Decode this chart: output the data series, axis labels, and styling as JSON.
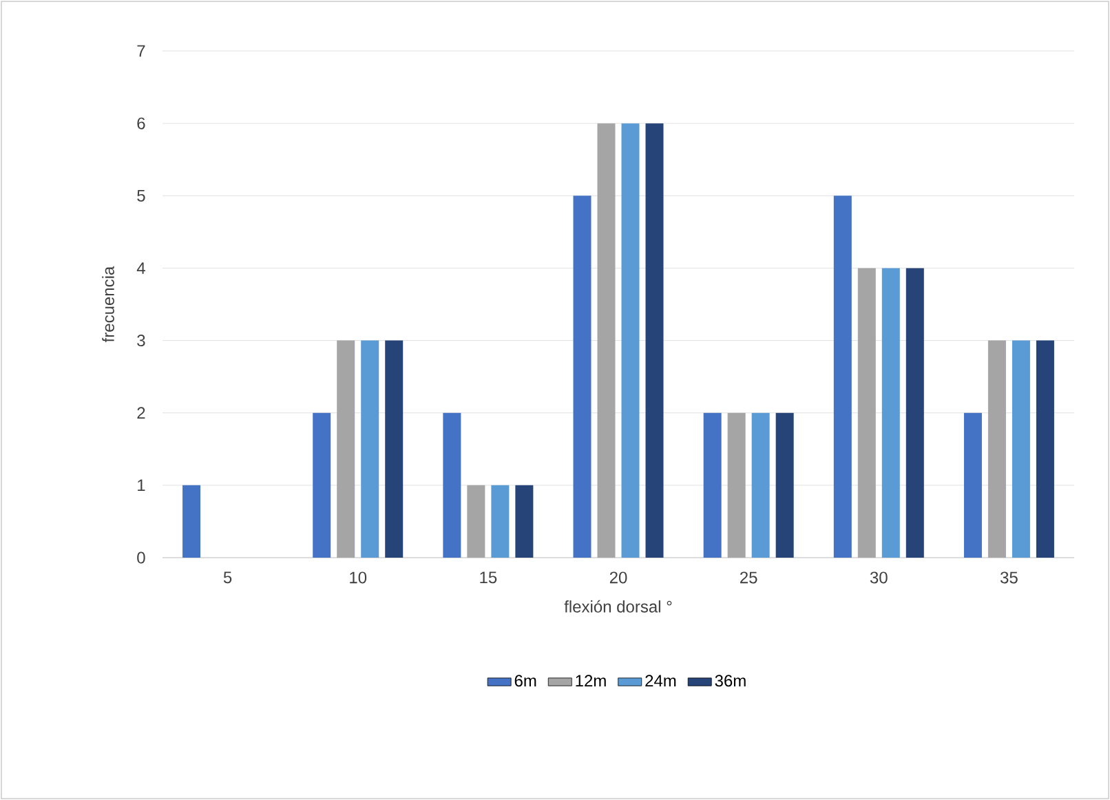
{
  "chart_data": {
    "type": "bar",
    "xlabel": "flexión dorsal °",
    "ylabel": "frecuencia",
    "categories": [
      "5",
      "10",
      "15",
      "20",
      "25",
      "30",
      "35"
    ],
    "series": [
      {
        "name": "6m",
        "color": "#4472c4",
        "values": [
          1,
          2,
          2,
          5,
          2,
          5,
          2
        ]
      },
      {
        "name": "12m",
        "color": "#a5a5a5",
        "values": [
          0,
          3,
          1,
          6,
          2,
          4,
          3
        ]
      },
      {
        "name": "24m",
        "color": "#5b9bd5",
        "values": [
          0,
          3,
          1,
          6,
          2,
          4,
          3
        ]
      },
      {
        "name": "36m",
        "color": "#264478",
        "values": [
          0,
          3,
          1,
          6,
          2,
          4,
          3
        ]
      }
    ],
    "ylim": [
      0,
      7
    ],
    "yticks": [
      0,
      1,
      2,
      3,
      4,
      5,
      6,
      7
    ],
    "grid": "y",
    "legend": "bottom"
  }
}
